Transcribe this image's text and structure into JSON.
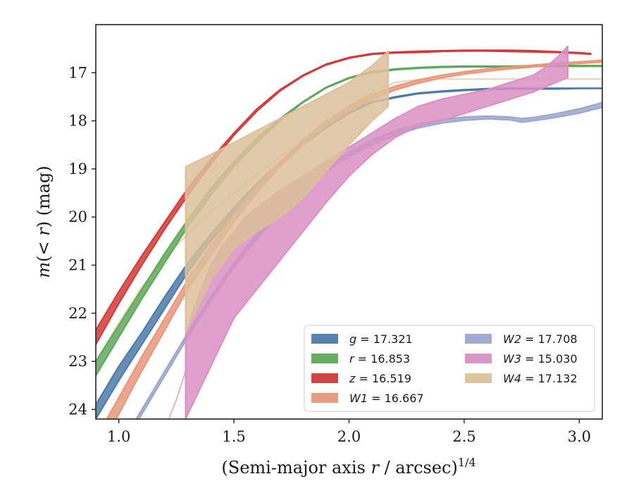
{
  "chart_data": {
    "type": "line",
    "xlabel": "(Semi-major axis r / arcsec)^{1/4}",
    "ylabel": "m(< r) (mag)",
    "xlim": [
      0.9,
      3.1
    ],
    "ylim": [
      24.2,
      16.0
    ],
    "y_inverted": true,
    "grid": false,
    "legend_position": "lower-right",
    "legend_columns": 2,
    "x_ticks": [
      "1.0",
      "1.5",
      "2.0",
      "2.5",
      "3.0"
    ],
    "y_ticks": [
      "17",
      "18",
      "19",
      "20",
      "21",
      "22",
      "23",
      "24"
    ],
    "series": [
      {
        "name": "g = 17.321",
        "color": "#4c7aa8",
        "style": "band",
        "x": [
          0.9,
          1.0,
          1.1,
          1.2,
          1.3,
          1.4,
          1.5,
          1.6,
          1.7,
          1.8,
          1.9,
          2.0,
          2.1,
          2.2,
          2.3,
          2.4,
          2.5,
          2.6,
          2.7,
          2.8,
          2.9,
          3.0,
          3.1
        ],
        "y_upper": [
          23.9,
          23.1,
          22.4,
          21.65,
          20.95,
          20.35,
          19.8,
          19.3,
          18.85,
          18.45,
          18.1,
          17.8,
          17.6,
          17.5,
          17.42,
          17.38,
          17.35,
          17.33,
          17.32,
          17.32,
          17.32,
          17.32,
          17.32
        ],
        "y_lower": [
          24.2,
          23.4,
          22.65,
          21.9,
          21.15,
          20.5,
          19.95,
          19.4,
          18.95,
          18.5,
          18.15,
          17.85,
          17.62,
          17.52,
          17.44,
          17.4,
          17.37,
          17.35,
          17.34,
          17.34,
          17.34,
          17.33,
          17.33
        ]
      },
      {
        "name": "r = 16.853",
        "color": "#5ea85a",
        "style": "band",
        "x": [
          0.9,
          1.0,
          1.1,
          1.2,
          1.3,
          1.4,
          1.5,
          1.6,
          1.7,
          1.8,
          1.9,
          2.0,
          2.1,
          2.2,
          2.3,
          2.4,
          2.5,
          2.6,
          2.7,
          2.8,
          2.9,
          3.0,
          3.1
        ],
        "y_upper": [
          23.0,
          22.25,
          21.5,
          20.75,
          20.05,
          19.4,
          18.85,
          18.35,
          17.95,
          17.6,
          17.3,
          17.1,
          16.98,
          16.92,
          16.89,
          16.87,
          16.86,
          16.86,
          16.86,
          16.85,
          16.85,
          16.85,
          16.85
        ],
        "y_lower": [
          23.3,
          22.5,
          21.7,
          20.95,
          20.2,
          19.55,
          18.95,
          18.45,
          18.0,
          17.62,
          17.32,
          17.12,
          17.0,
          16.94,
          16.91,
          16.89,
          16.88,
          16.88,
          16.88,
          16.87,
          16.87,
          16.87,
          16.87
        ]
      },
      {
        "name": "z = 16.519",
        "color": "#d03a3a",
        "style": "band",
        "x": [
          0.9,
          1.0,
          1.1,
          1.2,
          1.3,
          1.4,
          1.5,
          1.6,
          1.7,
          1.8,
          1.9,
          2.0,
          2.1,
          2.2,
          2.3,
          2.4,
          2.5,
          2.6,
          2.7,
          2.8,
          2.9,
          3.0,
          3.05
        ],
        "y_upper": [
          22.35,
          21.55,
          20.8,
          20.1,
          19.4,
          18.8,
          18.25,
          17.75,
          17.35,
          17.05,
          16.82,
          16.68,
          16.6,
          16.57,
          16.55,
          16.54,
          16.53,
          16.53,
          16.53,
          16.54,
          16.56,
          16.58,
          16.6
        ],
        "y_lower": [
          22.65,
          21.8,
          21.0,
          20.25,
          19.55,
          18.9,
          18.3,
          17.8,
          17.38,
          17.07,
          16.84,
          16.7,
          16.62,
          16.59,
          16.58,
          16.56,
          16.55,
          16.55,
          16.56,
          16.57,
          16.58,
          16.6,
          16.62
        ]
      },
      {
        "name": "W1 = 16.667",
        "color": "#e8967a",
        "style": "band",
        "x": [
          0.9,
          1.0,
          1.1,
          1.2,
          1.3,
          1.4,
          1.5,
          1.6,
          1.7,
          1.8,
          1.9,
          2.0,
          2.1,
          2.2,
          2.3,
          2.4,
          2.5,
          2.6,
          2.7,
          2.8,
          2.9,
          3.0,
          3.1
        ],
        "y_upper": [
          24.6,
          23.75,
          22.9,
          22.1,
          21.3,
          20.6,
          19.95,
          19.35,
          18.85,
          18.4,
          18.0,
          17.7,
          17.45,
          17.28,
          17.15,
          17.05,
          16.98,
          16.92,
          16.88,
          16.84,
          16.8,
          16.77,
          16.74
        ],
        "y_lower": [
          25.0,
          24.1,
          23.2,
          22.35,
          21.5,
          20.8,
          20.1,
          19.5,
          18.95,
          18.5,
          18.1,
          17.8,
          17.55,
          17.36,
          17.22,
          17.11,
          17.03,
          16.97,
          16.92,
          16.88,
          16.84,
          16.81,
          16.78
        ]
      },
      {
        "name": "W2 = 17.708",
        "color": "#9aa6cc",
        "style": "band",
        "x": [
          0.9,
          1.0,
          1.1,
          1.2,
          1.3,
          1.4,
          1.5,
          1.6,
          1.7,
          1.8,
          1.9,
          2.0,
          2.1,
          2.2,
          2.3,
          2.4,
          2.5,
          2.6,
          2.7,
          2.75,
          2.8,
          2.9,
          3.0,
          3.1
        ],
        "y_upper": [
          25.5,
          24.8,
          24.0,
          23.2,
          22.4,
          21.65,
          20.95,
          20.35,
          19.8,
          19.35,
          18.95,
          18.65,
          18.4,
          18.2,
          18.07,
          17.98,
          17.92,
          17.9,
          17.92,
          17.95,
          17.93,
          17.85,
          17.75,
          17.62
        ],
        "y_lower": [
          25.6,
          24.9,
          24.1,
          23.3,
          22.5,
          21.75,
          21.05,
          20.45,
          19.9,
          19.45,
          19.05,
          18.75,
          18.5,
          18.3,
          18.15,
          18.05,
          17.99,
          17.96,
          17.98,
          18.03,
          18.0,
          17.93,
          17.84,
          17.72
        ]
      },
      {
        "name": "W3 = 15.030",
        "color": "#d98fc3",
        "style": "band",
        "x": [
          1.29,
          1.35,
          1.4,
          1.45,
          1.5,
          1.55,
          1.6,
          1.7,
          1.8,
          1.9,
          2.0,
          2.1,
          2.2,
          2.3,
          2.4,
          2.5,
          2.6,
          2.7,
          2.8,
          2.85,
          2.9,
          2.95
        ],
        "y_upper": [
          22.4,
          21.6,
          21.0,
          20.6,
          20.3,
          20.0,
          19.8,
          19.45,
          19.15,
          18.85,
          18.55,
          18.25,
          17.95,
          17.7,
          17.55,
          17.45,
          17.35,
          17.2,
          17.05,
          16.9,
          16.7,
          16.45
        ],
        "y_lower": [
          24.2,
          23.6,
          23.1,
          22.6,
          22.1,
          21.8,
          21.5,
          20.9,
          20.3,
          19.7,
          19.15,
          18.7,
          18.35,
          18.1,
          18.0,
          17.85,
          17.7,
          17.55,
          17.4,
          17.3,
          17.2,
          17.1
        ]
      },
      {
        "name": "W4 = 17.132",
        "color": "#dcc09a",
        "style": "band",
        "x": [
          1.29,
          1.4,
          1.5,
          1.6,
          1.7,
          1.8,
          1.9,
          2.0,
          2.1,
          2.17
        ],
        "y_upper": [
          18.95,
          18.7,
          18.45,
          18.2,
          17.95,
          17.7,
          17.45,
          17.2,
          16.85,
          16.55
        ],
        "y_lower": [
          22.4,
          21.3,
          20.65,
          20.3,
          20.0,
          19.6,
          19.05,
          18.5,
          18.0,
          17.7
        ]
      }
    ],
    "background_curves": [
      {
        "color": "#dcc09a",
        "x": [
          0.9,
          1.0,
          1.1,
          1.2,
          1.3,
          1.4,
          1.5,
          1.6,
          1.7,
          1.8,
          1.9,
          2.0,
          2.1,
          2.2,
          2.3,
          2.4,
          2.5,
          2.6,
          2.7,
          2.8,
          2.9,
          3.0,
          3.1
        ],
        "y": [
          23.0,
          22.2,
          21.45,
          20.85,
          20.35,
          19.9,
          19.5,
          19.1,
          18.75,
          18.4,
          18.05,
          17.7,
          17.4,
          17.2,
          17.14,
          17.13,
          17.13,
          17.13,
          17.13,
          17.13,
          17.13,
          17.13,
          17.13
        ]
      },
      {
        "color": "#d98fc3",
        "x": [
          1.2,
          1.25,
          1.29
        ],
        "y": [
          24.4,
          23.8,
          23.2
        ]
      }
    ]
  }
}
